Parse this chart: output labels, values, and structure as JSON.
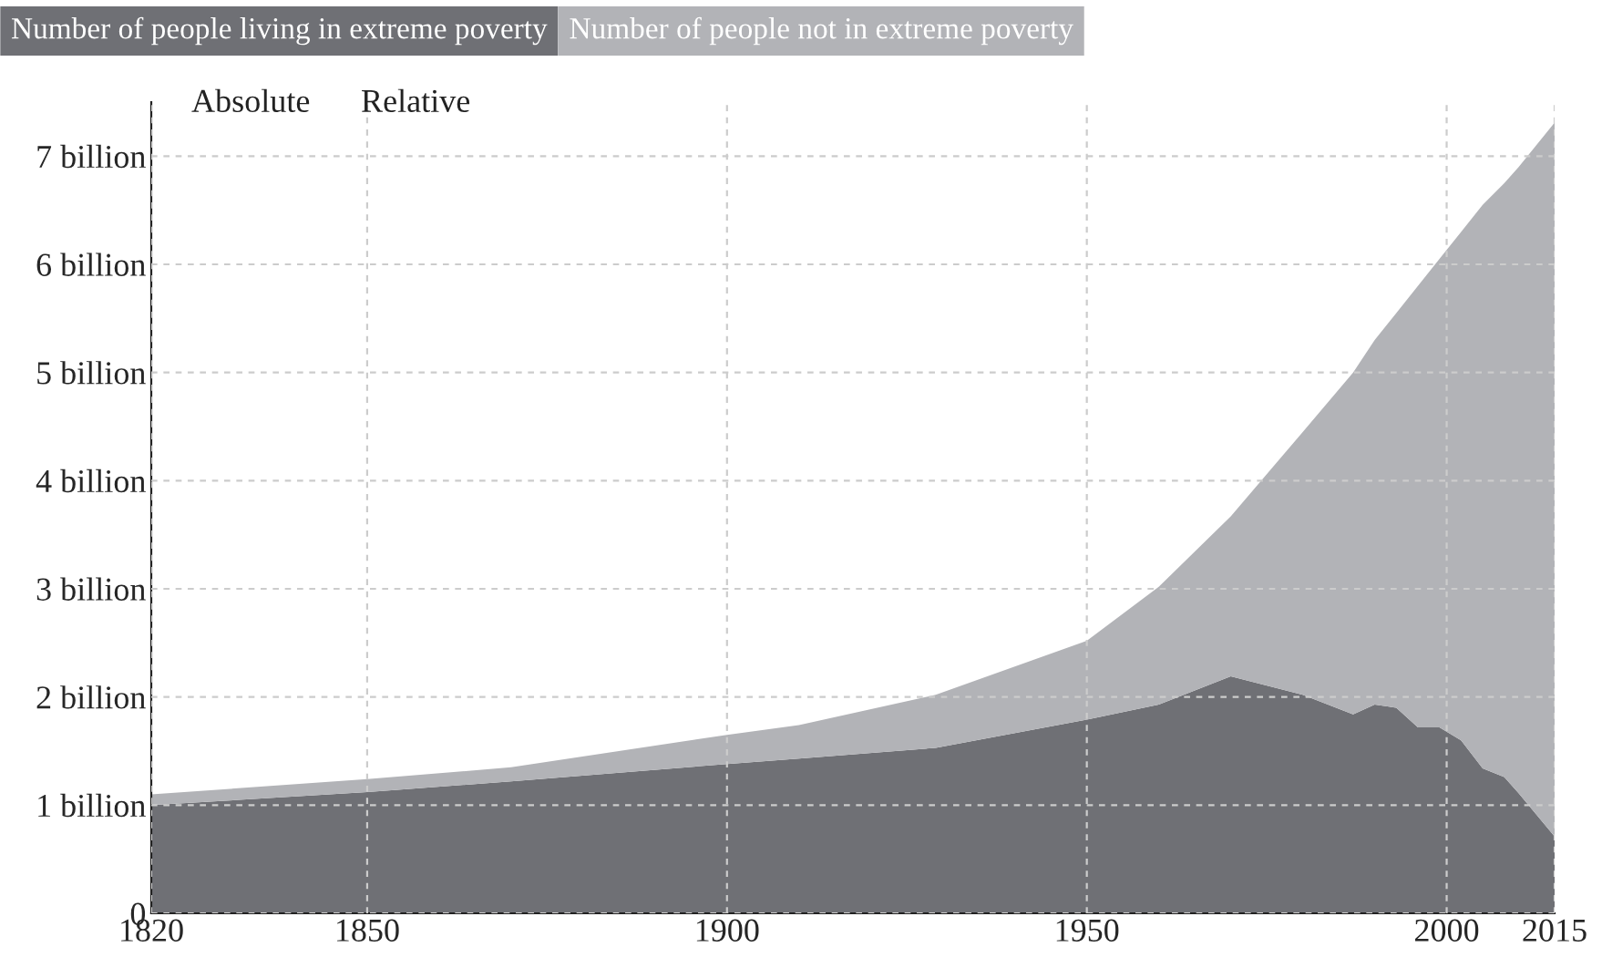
{
  "chart_data": {
    "type": "area",
    "stacked": true,
    "x": [
      1820,
      1850,
      1870,
      1900,
      1910,
      1929,
      1950,
      1960,
      1970,
      1980,
      1987,
      1990,
      1993,
      1996,
      1999,
      2002,
      2005,
      2008,
      2010,
      2015
    ],
    "series": [
      {
        "name": "Number of people living in extreme poverty",
        "color": "#6f7075",
        "values": [
          1.0,
          1.12,
          1.22,
          1.38,
          1.43,
          1.53,
          1.79,
          1.93,
          2.19,
          2.02,
          1.84,
          1.93,
          1.9,
          1.72,
          1.72,
          1.6,
          1.34,
          1.26,
          1.11,
          0.71
        ]
      },
      {
        "name": "Number of people not in extreme poverty",
        "color": "#b2b3b7",
        "values": [
          0.1,
          0.12,
          0.13,
          0.27,
          0.31,
          0.49,
          0.73,
          1.09,
          1.48,
          2.43,
          3.16,
          3.37,
          3.65,
          4.08,
          4.33,
          4.7,
          5.21,
          5.49,
          5.79,
          6.6
        ]
      }
    ],
    "xlim": [
      1820,
      2015
    ],
    "xticks": [
      1820,
      1850,
      1900,
      1950,
      2000,
      2015
    ],
    "ylim": [
      0,
      7.5
    ],
    "yticks": [
      0,
      {
        "value": 1,
        "label": "1 billion"
      },
      {
        "value": 2,
        "label": "2 billion"
      },
      {
        "value": 3,
        "label": "3 billion"
      },
      {
        "value": 4,
        "label": "4 billion"
      },
      {
        "value": 5,
        "label": "5 billion"
      },
      {
        "value": 6,
        "label": "6 billion"
      },
      {
        "value": 7,
        "label": "7 billion"
      }
    ],
    "grid": true,
    "legend": "top left",
    "annotations": [
      "Absolute",
      "Relative"
    ]
  }
}
